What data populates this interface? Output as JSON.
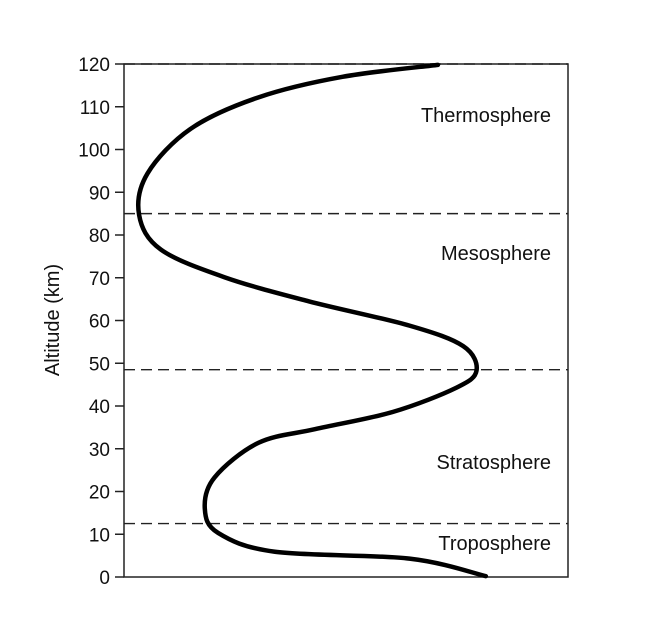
{
  "chart_data": {
    "type": "line",
    "title": "",
    "xlabel": "",
    "ylabel": "Altitude (km)",
    "ylim": [
      0,
      120
    ],
    "yticks": [
      0,
      10,
      20,
      30,
      40,
      50,
      60,
      70,
      80,
      90,
      100,
      110,
      120
    ],
    "xlim": [
      0,
      100
    ],
    "x_note_units": "unlabeled",
    "grid": false,
    "series": [
      {
        "color": "#000000",
        "points": [
          {
            "x": 81.5,
            "y": 0.2
          },
          {
            "x": 64.3,
            "y": 4.3
          },
          {
            "x": 34.0,
            "y": 5.9
          },
          {
            "x": 21.2,
            "y": 10.3
          },
          {
            "x": 18.2,
            "y": 16.0
          },
          {
            "x": 20.4,
            "y": 23.3
          },
          {
            "x": 30.3,
            "y": 31.4
          },
          {
            "x": 43.1,
            "y": 34.6
          },
          {
            "x": 60.5,
            "y": 38.6
          },
          {
            "x": 74.9,
            "y": 44.3
          },
          {
            "x": 79.4,
            "y": 48.3
          },
          {
            "x": 76.4,
            "y": 54.0
          },
          {
            "x": 64.3,
            "y": 58.8
          },
          {
            "x": 41.6,
            "y": 64.5
          },
          {
            "x": 22.7,
            "y": 70.1
          },
          {
            "x": 8.3,
            "y": 76.6
          },
          {
            "x": 3.4,
            "y": 84.7
          },
          {
            "x": 5.3,
            "y": 94.4
          },
          {
            "x": 15.1,
            "y": 104.9
          },
          {
            "x": 30.3,
            "y": 112.2
          },
          {
            "x": 49.2,
            "y": 117.0
          },
          {
            "x": 70.7,
            "y": 119.8
          }
        ]
      }
    ],
    "boundaries": [
      12.5,
      48.5,
      85,
      120
    ],
    "layers": [
      {
        "name": "Troposphere"
      },
      {
        "name": "Stratosphere"
      },
      {
        "name": "Mesosphere"
      },
      {
        "name": "Thermosphere"
      }
    ]
  }
}
